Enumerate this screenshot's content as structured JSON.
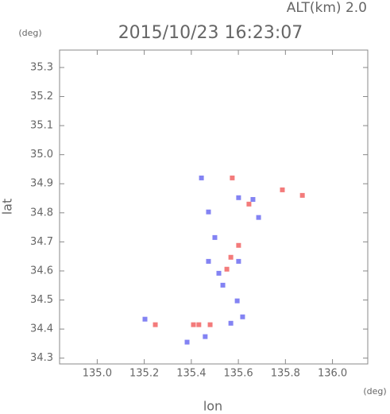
{
  "chart_data": {
    "type": "scatter",
    "title": "2015/10/23 16:23:07",
    "subtitle": "ALT(km) 2.0",
    "x_label": "lon",
    "y_label": "lat",
    "x_unit": "(deg)",
    "y_unit": "(deg)",
    "xlim": [
      134.84,
      136.15
    ],
    "ylim": [
      34.28,
      35.36
    ],
    "xticks": [
      {
        "value": 135,
        "label": "135.0"
      },
      135.2,
      135.4,
      135.6,
      135.8,
      {
        "value": 136,
        "label": "136.0"
      }
    ],
    "yticks": [
      34.3,
      34.4,
      34.5,
      34.6,
      34.7,
      34.8,
      34.9,
      {
        "value": 35,
        "label": "35.0"
      },
      35.1,
      35.2,
      35.3
    ],
    "series": [
      {
        "color": "#6464f0",
        "x": [
          135.443,
          135.473,
          135.662,
          135.5,
          135.473,
          135.601,
          135.534,
          135.595,
          135.618,
          135.568,
          135.203,
          135.382,
          135.459,
          135.517,
          135.686,
          135.601
        ],
        "y": [
          34.92,
          34.803,
          34.846,
          34.715,
          34.633,
          34.633,
          34.551,
          34.497,
          34.442,
          34.42,
          34.434,
          34.355,
          34.374,
          34.592,
          34.784,
          34.852
        ]
      },
      {
        "color": "#f05a5a",
        "x": [
          135.574,
          135.432,
          135.48,
          135.568,
          135.551,
          135.645,
          135.787,
          135.872,
          135.409,
          135.601,
          135.247
        ],
        "y": [
          34.92,
          34.415,
          34.415,
          34.647,
          34.606,
          34.83,
          34.879,
          34.86,
          34.415,
          34.688,
          34.415
        ]
      }
    ]
  }
}
